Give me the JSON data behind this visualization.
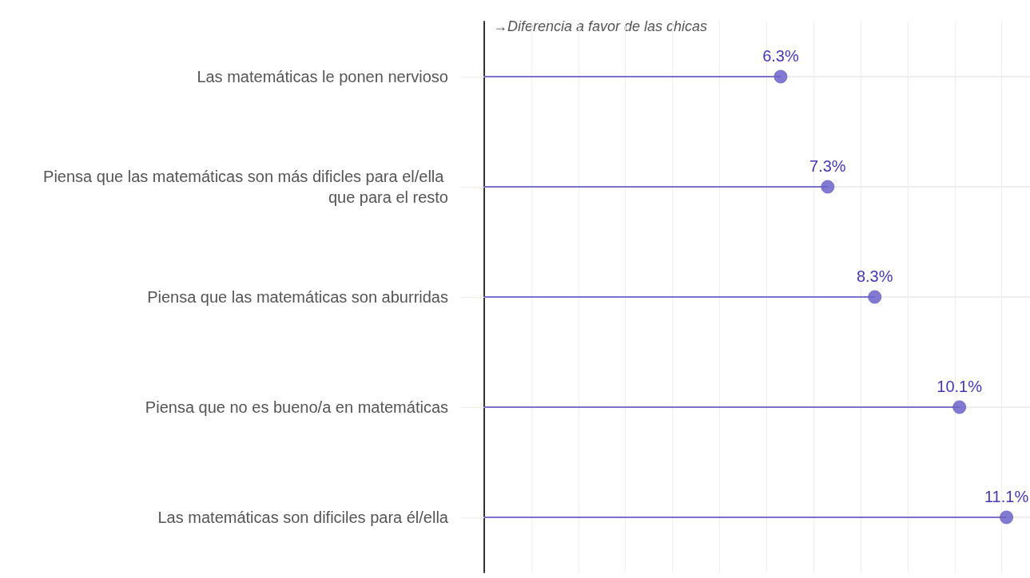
{
  "chart_data": {
    "type": "lollipop",
    "orientation": "horizontal",
    "categories": [
      "Las matemáticas le ponen nervioso",
      "Piensa que las matemáticas son más dificles para el/ella que para el resto",
      "Piensa que las matemáticas son aburridas",
      "Piensa que no es bueno/a en matemáticas",
      "Las matemáticas son dificiles para él/ella"
    ],
    "values": [
      6.3,
      7.3,
      8.3,
      10.1,
      11.1
    ],
    "value_labels": [
      "6.3%",
      "7.3%",
      "8.3%",
      "10.1%",
      "11.1%"
    ],
    "color": "#6c63c8",
    "xlim": [
      0,
      11.6
    ],
    "tick_labels": "y",
    "grid": true,
    "marker": "circle",
    "annotations": [
      "→Diferencia a favor de las chicas"
    ]
  }
}
